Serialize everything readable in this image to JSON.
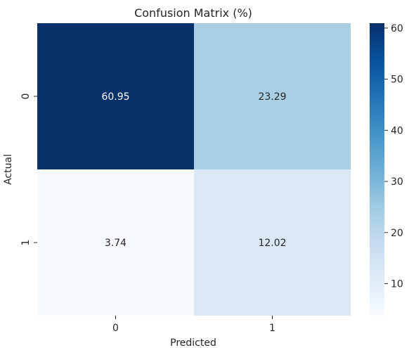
{
  "chart_data": {
    "type": "heatmap",
    "title": "Confusion Matrix (%)",
    "xlabel": "Predicted",
    "ylabel": "Actual",
    "x_categories": [
      "0",
      "1"
    ],
    "y_categories": [
      "0",
      "1"
    ],
    "values": [
      [
        60.95,
        23.29
      ],
      [
        3.74,
        12.02
      ]
    ],
    "cell_labels": [
      [
        "60.95",
        "23.29"
      ],
      [
        "3.74",
        "12.02"
      ]
    ],
    "colormap": "Blues",
    "colorbar": {
      "range": [
        3.74,
        60.95
      ],
      "ticks": [
        10,
        20,
        30,
        40,
        50,
        60
      ],
      "tick_labels": [
        "10",
        "20",
        "30",
        "40",
        "50",
        "60"
      ]
    },
    "colors": {
      "min": "#f7fbff",
      "max": "#08306b",
      "text_light": "#ffffff",
      "text_dark": "#262626"
    }
  }
}
